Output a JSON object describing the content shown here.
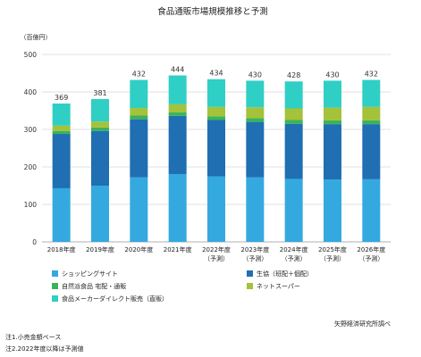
{
  "chart_data": {
    "type": "bar",
    "stacked": true,
    "title": "食品通販市場規模推移と予測",
    "unit_label": "（百億円）",
    "xlabel": "",
    "ylabel": "",
    "ylim": [
      0,
      500
    ],
    "yticks": [
      0,
      100,
      200,
      300,
      400,
      500
    ],
    "grid": true,
    "legend_position": "bottom",
    "categories": [
      [
        "2018年度"
      ],
      [
        "2019年度"
      ],
      [
        "2020年度"
      ],
      [
        "2021年度"
      ],
      [
        "2022年度",
        "（予測）"
      ],
      [
        "2023年度",
        "（予測）"
      ],
      [
        "2024年度",
        "（予測）"
      ],
      [
        "2025年度",
        "（予測）"
      ],
      [
        "2026年度",
        "（予測）"
      ]
    ],
    "totals": [
      369,
      381,
      432,
      444,
      434,
      430,
      428,
      430,
      432
    ],
    "series": [
      {
        "name": "ショッピングサイト",
        "color": "#34a9e0",
        "values": [
          143,
          150,
          172,
          181,
          175,
          172,
          168,
          166,
          167
        ]
      },
      {
        "name": "生協（班配＋個配）",
        "color": "#1f6fb2",
        "values": [
          145,
          146,
          155,
          155,
          150,
          148,
          147,
          148,
          147
        ]
      },
      {
        "name": "自然派食品 宅配・通販",
        "color": "#3bb35a",
        "values": [
          8,
          9,
          10,
          10,
          10,
          10,
          10,
          10,
          10
        ]
      },
      {
        "name": "ネットスーパー",
        "color": "#a4c23a",
        "values": [
          14,
          16,
          20,
          21,
          25,
          29,
          31,
          34,
          36
        ]
      },
      {
        "name": "食品メーカーダイレクト販売（直販）",
        "color": "#2fcfc5",
        "values": [
          59,
          60,
          75,
          77,
          74,
          71,
          72,
          72,
          72
        ]
      }
    ]
  },
  "footnotes": [
    "注1.小売金額ベース",
    "注2.2022年度以降は予測値"
  ],
  "source": "矢野経済研究所調べ"
}
